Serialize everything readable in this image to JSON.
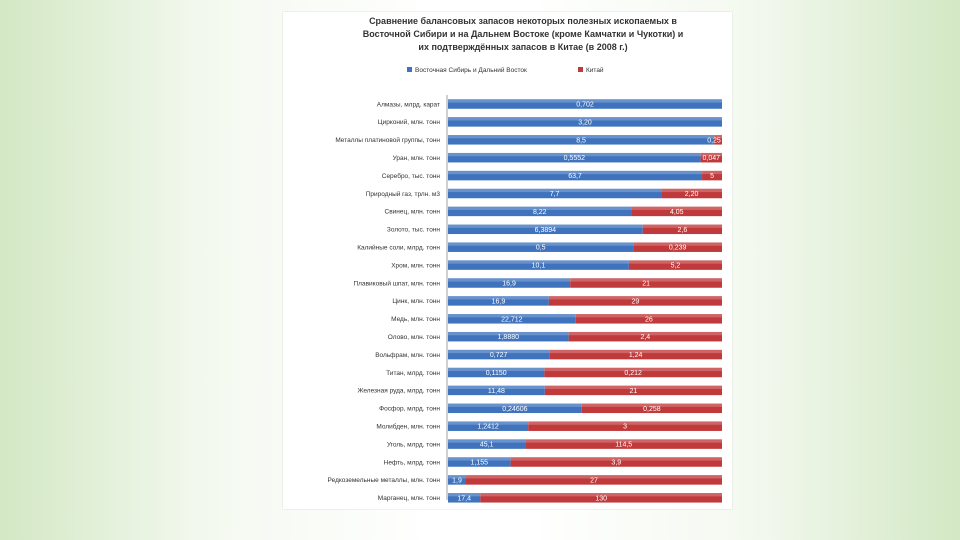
{
  "colors": {
    "series1": "#3f73bd",
    "series2": "#c0393b",
    "page_bg": "#ffffff",
    "text": "#333333"
  },
  "chart_data": {
    "type": "bar",
    "orientation": "horizontal",
    "stacked": "percent",
    "title_lines": [
      "Сравнение балансовых запасов некоторых полезных ископаемых в",
      "Восточной Сибири и на Дальнем Востоке (кроме Камчатки и Чукотки) и",
      "их подтверждённых запасов в Китае (в 2008 г.)"
    ],
    "legend_position": "top",
    "categories": [
      "Алмазы, млрд. карат",
      "Цирконий, млн. тонн",
      "Металлы платиновой группы, тонн",
      "Уран, млн. тонн",
      "Серебро, тыс. тонн",
      "Природный газ, трлн. м3",
      "Свинец, млн. тонн",
      "Золото, тыс. тонн",
      "Калийные соли, млрд. тонн",
      "Хром, млн. тонн",
      "Плавиковый шпат, млн. тонн",
      "Цинк, млн. тонн",
      "Медь, млн. тонн",
      "Олово, млн. тонн",
      "Вольфрам, млн. тонн",
      "Титан, млрд. тонн",
      "Железная руда, млрд. тонн",
      "Фосфор, млрд. тонн",
      "Молибден, млн. тонн",
      "Уголь, млрд. тонн",
      "Нефть, млрд. тонн",
      "Редкоземельные металлы, млн. тонн",
      "Марганец, млн. тонн"
    ],
    "series": [
      {
        "name": "Восточная Сибирь и Дальний Восток",
        "labels": [
          "0,702",
          "3,20",
          "8,5",
          "0,5552",
          "63,7",
          "7,7",
          "8,22",
          "6,3894",
          "0,5",
          "10,1",
          "16,9",
          "16,9",
          "22,712",
          "1,8880",
          "0,727",
          "0,1150",
          "11,48",
          "0,24606",
          "1,2412",
          "45,1",
          "1,155",
          "1,9",
          "17,4"
        ],
        "values": [
          0.702,
          3.2,
          8.5,
          0.5552,
          63.7,
          7.7,
          8.22,
          6.3894,
          0.5,
          10.1,
          16.9,
          16.9,
          22.712,
          1.888,
          0.727,
          0.115,
          11.48,
          0.24606,
          1.2412,
          45.1,
          1.155,
          1.9,
          17.4
        ]
      },
      {
        "name": "Китай",
        "labels": [
          "",
          "",
          "0,25",
          "0,047",
          "5",
          "2,20",
          "4,05",
          "2,6",
          "0,239",
          "5,2",
          "21",
          "29",
          "26",
          "2,4",
          "1,24",
          "0,212",
          "21",
          "0,258",
          "3",
          "114,5",
          "3,9",
          "27",
          "130"
        ],
        "values": [
          0,
          0,
          0.25,
          0.047,
          5,
          2.2,
          4.05,
          2.6,
          0.239,
          5.2,
          21,
          29,
          26,
          2.4,
          1.24,
          0.212,
          21,
          0.258,
          3,
          114.5,
          3.9,
          27,
          130
        ]
      }
    ]
  }
}
